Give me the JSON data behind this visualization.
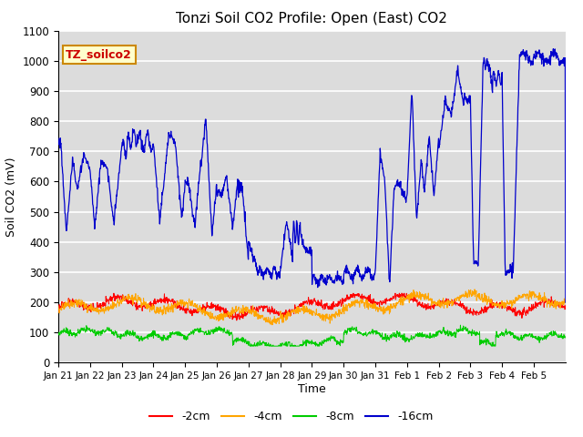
{
  "title": "Tonzi Soil CO2 Profile: Open (East) CO2",
  "ylabel": "Soil CO2 (mV)",
  "xlabel": "Time",
  "ylim": [
    0,
    1100
  ],
  "legend_label": "TZ_soilco2",
  "series_labels": [
    "-2cm",
    "-4cm",
    "-8cm",
    "-16cm"
  ],
  "series_colors": [
    "#ff0000",
    "#ffa500",
    "#00cc00",
    "#0000cc"
  ],
  "background_color": "#dcdcdc",
  "grid_color": "#ffffff",
  "tick_labels": [
    "Jan 21",
    "Jan 22",
    "Jan 23",
    "Jan 24",
    "Jan 25",
    "Jan 26",
    "Jan 27",
    "Jan 28",
    "Jan 29",
    "Jan 30",
    "Jan 31",
    "Feb 1",
    "Feb 2",
    "Feb 3",
    "Feb 4",
    "Feb 5"
  ],
  "title_fontsize": 11,
  "axis_fontsize": 9,
  "legend_fontsize": 9
}
